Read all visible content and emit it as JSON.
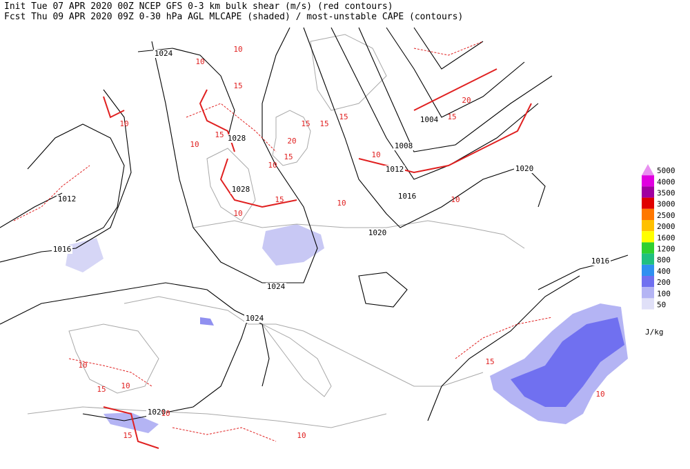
{
  "header": {
    "line1": "Init   Tue 07 APR 2020 00Z   NCEP GFS 0-3 km bulk shear (m/s) (red contours)",
    "line2": "Fcst Thu 09 APR 2020 09Z  0-30 hPa AGL MLCAPE (shaded) / most-unstable CAPE (contours)"
  },
  "legend": {
    "unit": "J/kg",
    "levels": [
      {
        "value": 5000,
        "color": "#e890f0"
      },
      {
        "value": 4000,
        "color": "#e000e0"
      },
      {
        "value": 3500,
        "color": "#a000a0"
      },
      {
        "value": 3000,
        "color": "#e00000"
      },
      {
        "value": 2500,
        "color": "#ff7800"
      },
      {
        "value": 2000,
        "color": "#ffc000"
      },
      {
        "value": 1600,
        "color": "#ffff00"
      },
      {
        "value": 1200,
        "color": "#30d030"
      },
      {
        "value": 800,
        "color": "#20c080"
      },
      {
        "value": 400,
        "color": "#3090f0"
      },
      {
        "value": 200,
        "color": "#7070f0"
      },
      {
        "value": 100,
        "color": "#b4b4f4"
      },
      {
        "value": 50,
        "color": "#e0e0f8"
      }
    ]
  },
  "pressure_labels": [
    "1024",
    "1028",
    "1028",
    "1012",
    "1016",
    "1024",
    "1024",
    "1020",
    "1020",
    "1016",
    "1012",
    "1008",
    "1004",
    "1020",
    "1016"
  ],
  "shear_labels": [
    "10",
    "10",
    "15",
    "10",
    "15",
    "10",
    "15",
    "20",
    "15",
    "10",
    "15",
    "15",
    "20",
    "15",
    "10",
    "10",
    "10",
    "15",
    "10",
    "10",
    "15",
    "10",
    "15",
    "10",
    "10",
    "15",
    "10"
  ]
}
